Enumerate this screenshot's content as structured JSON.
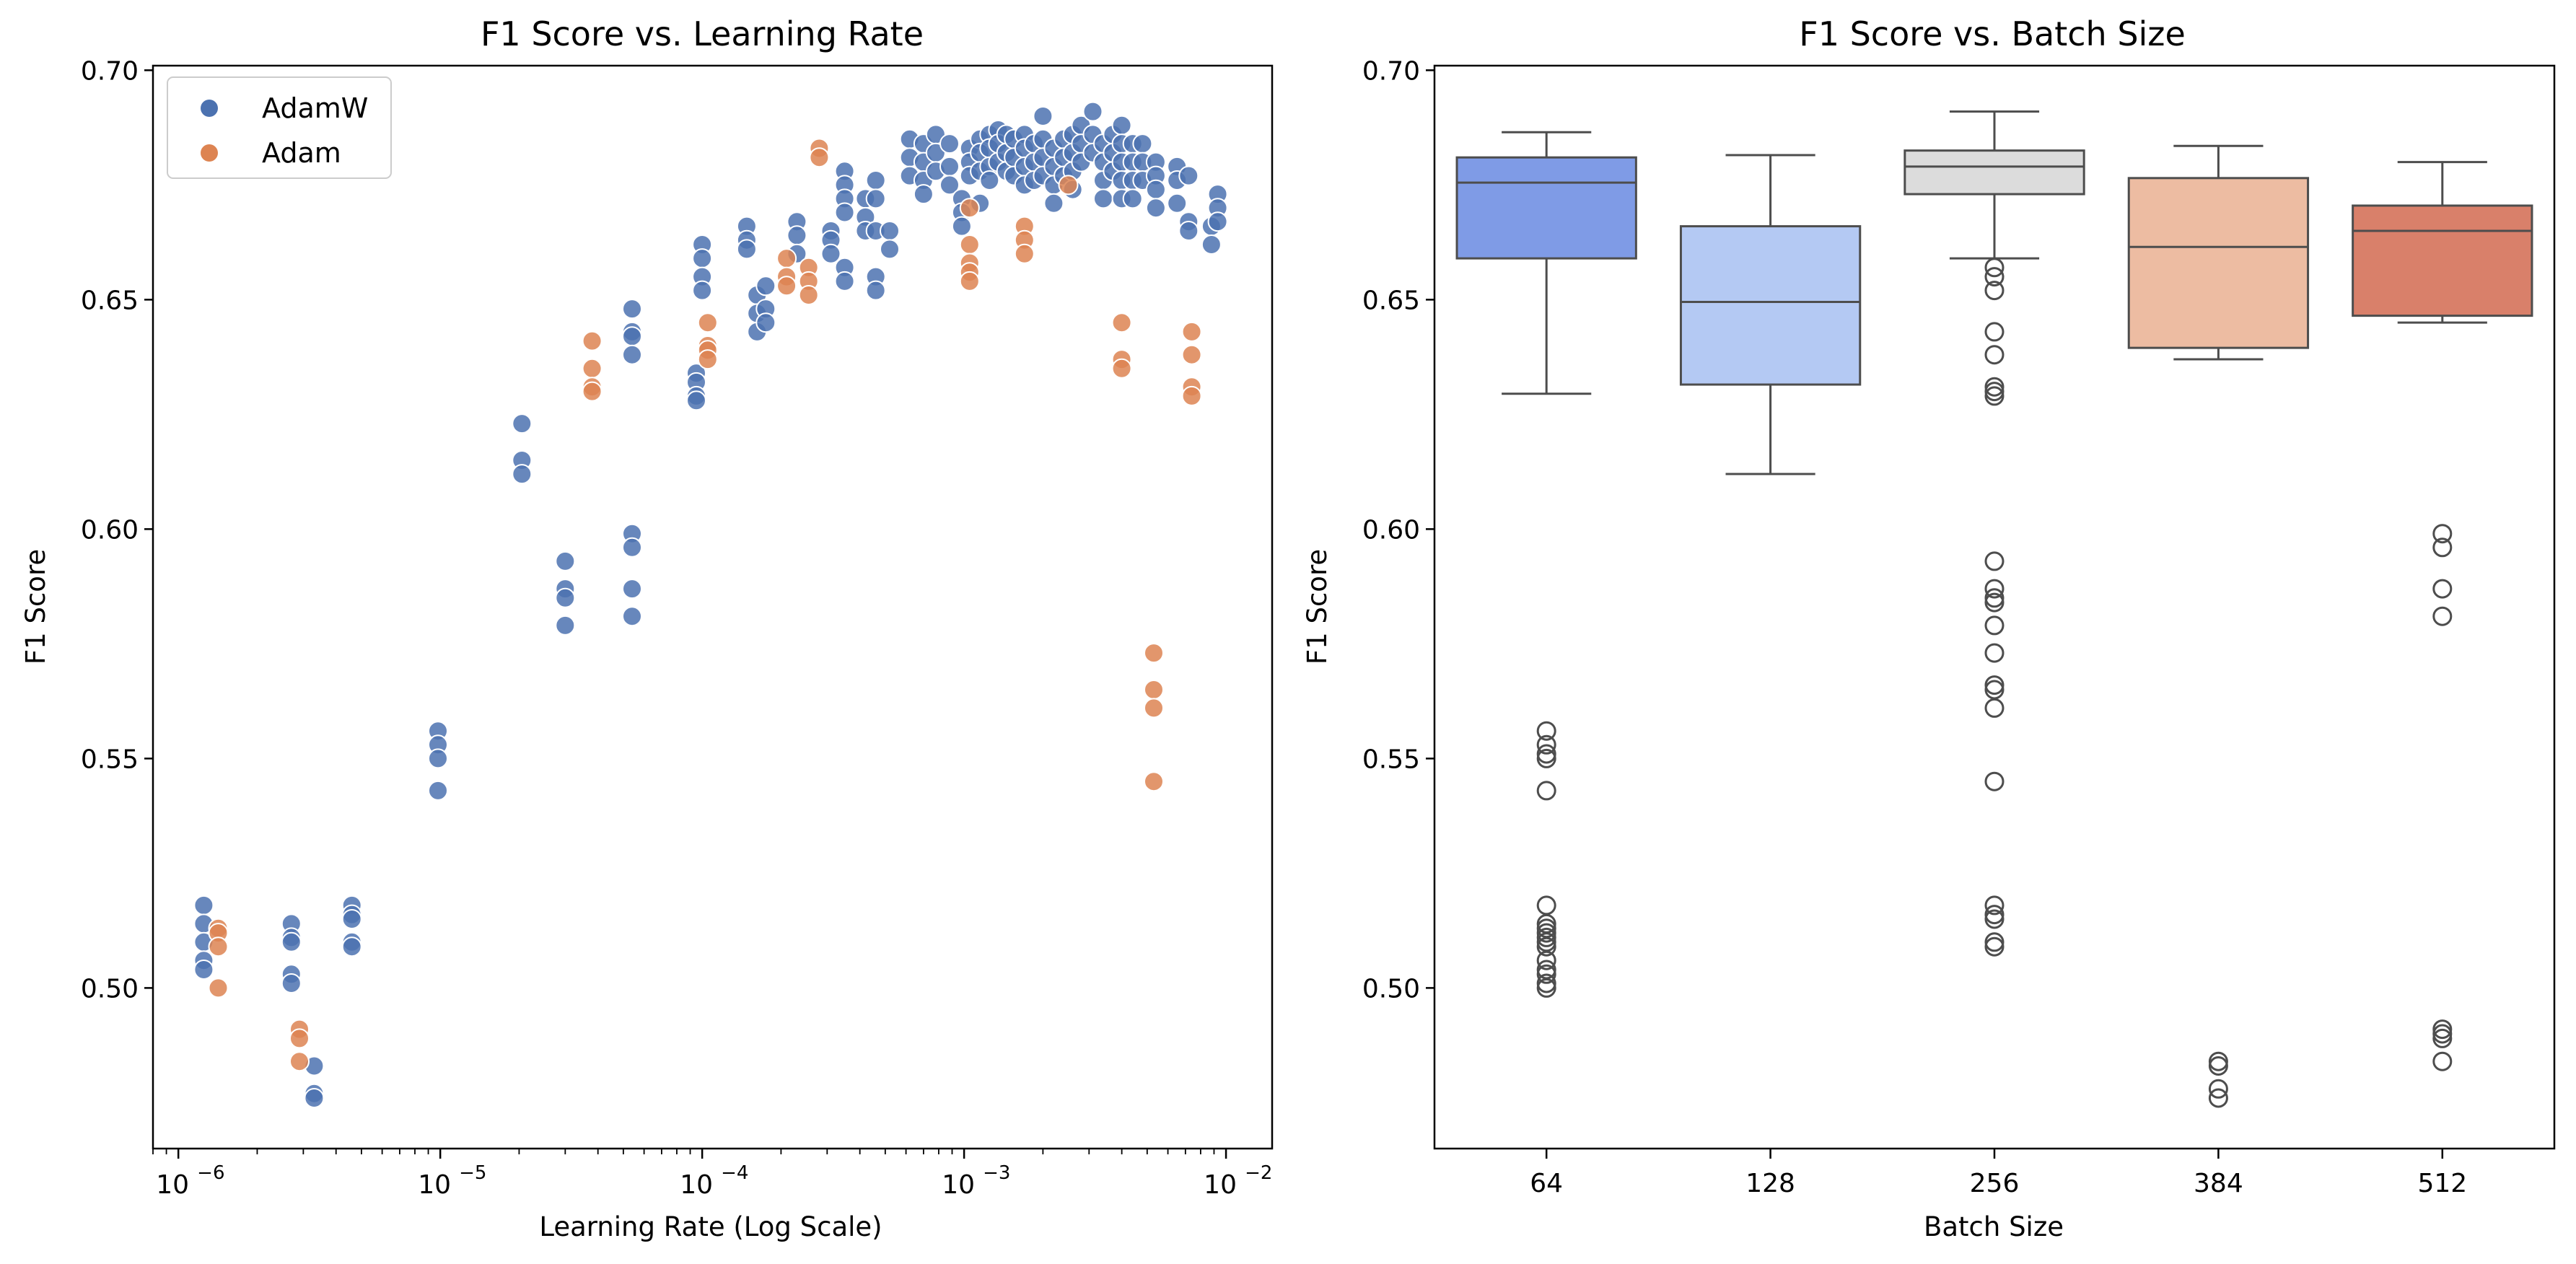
{
  "colors": {
    "adamw": "#4c72b0",
    "adam": "#dd8452",
    "box_fills": [
      "#7f9be6",
      "#b4c9f3",
      "#dcdcdc",
      "#edbca2",
      "#d9806a"
    ],
    "box_line": "#4d4d4d"
  },
  "chart_data": [
    {
      "type": "scatter",
      "title": "F1 Score vs. Learning Rate",
      "xlabel": "Learning Rate (Log Scale)",
      "ylabel": "F1 Score",
      "xscale": "log",
      "xlim": [
        8e-07,
        0.015
      ],
      "ylim": [
        0.465,
        0.701
      ],
      "xticks": [
        {
          "value": 1e-06,
          "base": "10",
          "exp": "−6"
        },
        {
          "value": 1e-05,
          "base": "10",
          "exp": "−5"
        },
        {
          "value": 0.0001,
          "base": "10",
          "exp": "−4"
        },
        {
          "value": 0.001,
          "base": "10",
          "exp": "−3"
        },
        {
          "value": 0.01,
          "base": "10",
          "exp": "−2"
        }
      ],
      "yticks": [
        "0.50",
        "0.55",
        "0.60",
        "0.65",
        "0.70"
      ],
      "legend": {
        "position": "top-left",
        "entries": [
          "AdamW",
          "Adam"
        ]
      },
      "grid": false,
      "series": [
        {
          "name": "AdamW",
          "points": [
            [
              1.25e-06,
              0.518
            ],
            [
              1.25e-06,
              0.514
            ],
            [
              1.25e-06,
              0.51
            ],
            [
              1.25e-06,
              0.506
            ],
            [
              1.25e-06,
              0.504
            ],
            [
              2.7e-06,
              0.514
            ],
            [
              2.7e-06,
              0.511
            ],
            [
              2.7e-06,
              0.51
            ],
            [
              2.7e-06,
              0.503
            ],
            [
              2.7e-06,
              0.501
            ],
            [
              3.3e-06,
              0.483
            ],
            [
              3.3e-06,
              0.477
            ],
            [
              3.3e-06,
              0.476
            ],
            [
              4.6e-06,
              0.518
            ],
            [
              4.6e-06,
              0.516
            ],
            [
              4.6e-06,
              0.515
            ],
            [
              4.6e-06,
              0.51
            ],
            [
              4.6e-06,
              0.509
            ],
            [
              9.8e-06,
              0.556
            ],
            [
              9.8e-06,
              0.553
            ],
            [
              9.8e-06,
              0.55
            ],
            [
              9.8e-06,
              0.543
            ],
            [
              2.05e-05,
              0.623
            ],
            [
              2.05e-05,
              0.615
            ],
            [
              2.05e-05,
              0.612
            ],
            [
              3e-05,
              0.593
            ],
            [
              3e-05,
              0.587
            ],
            [
              3e-05,
              0.585
            ],
            [
              3e-05,
              0.579
            ],
            [
              5.4e-05,
              0.648
            ],
            [
              5.4e-05,
              0.643
            ],
            [
              5.4e-05,
              0.642
            ],
            [
              5.4e-05,
              0.638
            ],
            [
              5.4e-05,
              0.599
            ],
            [
              5.4e-05,
              0.596
            ],
            [
              5.4e-05,
              0.587
            ],
            [
              5.4e-05,
              0.581
            ],
            [
              9.5e-05,
              0.634
            ],
            [
              9.5e-05,
              0.632
            ],
            [
              9.5e-05,
              0.629
            ],
            [
              9.5e-05,
              0.628
            ],
            [
              0.0001,
              0.662
            ],
            [
              0.0001,
              0.659
            ],
            [
              0.0001,
              0.655
            ],
            [
              0.0001,
              0.652
            ],
            [
              0.000148,
              0.666
            ],
            [
              0.000148,
              0.663
            ],
            [
              0.000148,
              0.661
            ],
            [
              0.000162,
              0.651
            ],
            [
              0.000162,
              0.647
            ],
            [
              0.000162,
              0.643
            ],
            [
              0.000175,
              0.653
            ],
            [
              0.000175,
              0.648
            ],
            [
              0.000175,
              0.645
            ],
            [
              0.00023,
              0.667
            ],
            [
              0.00023,
              0.664
            ],
            [
              0.00023,
              0.66
            ],
            [
              0.00031,
              0.665
            ],
            [
              0.00031,
              0.663
            ],
            [
              0.00031,
              0.66
            ],
            [
              0.00035,
              0.678
            ],
            [
              0.00035,
              0.675
            ],
            [
              0.00035,
              0.672
            ],
            [
              0.00035,
              0.669
            ],
            [
              0.00035,
              0.657
            ],
            [
              0.00035,
              0.654
            ],
            [
              0.00042,
              0.672
            ],
            [
              0.00042,
              0.668
            ],
            [
              0.00042,
              0.665
            ],
            [
              0.00046,
              0.676
            ],
            [
              0.00046,
              0.672
            ],
            [
              0.00046,
              0.665
            ],
            [
              0.00046,
              0.655
            ],
            [
              0.00046,
              0.652
            ],
            [
              0.00052,
              0.665
            ],
            [
              0.00052,
              0.661
            ],
            [
              0.00062,
              0.685
            ],
            [
              0.00062,
              0.681
            ],
            [
              0.00062,
              0.677
            ],
            [
              0.0007,
              0.684
            ],
            [
              0.0007,
              0.68
            ],
            [
              0.0007,
              0.676
            ],
            [
              0.0007,
              0.673
            ],
            [
              0.00078,
              0.686
            ],
            [
              0.00078,
              0.682
            ],
            [
              0.00078,
              0.678
            ],
            [
              0.00088,
              0.684
            ],
            [
              0.00088,
              0.679
            ],
            [
              0.00088,
              0.675
            ],
            [
              0.00098,
              0.672
            ],
            [
              0.00098,
              0.669
            ],
            [
              0.00098,
              0.666
            ],
            [
              0.00105,
              0.683
            ],
            [
              0.00105,
              0.68
            ],
            [
              0.00105,
              0.677
            ],
            [
              0.00115,
              0.685
            ],
            [
              0.00115,
              0.682
            ],
            [
              0.00115,
              0.678
            ],
            [
              0.00115,
              0.671
            ],
            [
              0.00125,
              0.686
            ],
            [
              0.00125,
              0.683
            ],
            [
              0.00125,
              0.679
            ],
            [
              0.00125,
              0.676
            ],
            [
              0.00135,
              0.687
            ],
            [
              0.00135,
              0.684
            ],
            [
              0.00135,
              0.68
            ],
            [
              0.00145,
              0.686
            ],
            [
              0.00145,
              0.682
            ],
            [
              0.00145,
              0.678
            ],
            [
              0.00155,
              0.685
            ],
            [
              0.00155,
              0.681
            ],
            [
              0.00155,
              0.677
            ],
            [
              0.0017,
              0.686
            ],
            [
              0.0017,
              0.683
            ],
            [
              0.0017,
              0.679
            ],
            [
              0.0017,
              0.675
            ],
            [
              0.00185,
              0.684
            ],
            [
              0.00185,
              0.68
            ],
            [
              0.00185,
              0.676
            ],
            [
              0.002,
              0.69
            ],
            [
              0.002,
              0.685
            ],
            [
              0.002,
              0.681
            ],
            [
              0.002,
              0.677
            ],
            [
              0.0022,
              0.683
            ],
            [
              0.0022,
              0.679
            ],
            [
              0.0022,
              0.675
            ],
            [
              0.0022,
              0.671
            ],
            [
              0.0024,
              0.685
            ],
            [
              0.0024,
              0.681
            ],
            [
              0.0024,
              0.677
            ],
            [
              0.0026,
              0.686
            ],
            [
              0.0026,
              0.682
            ],
            [
              0.0026,
              0.678
            ],
            [
              0.0026,
              0.674
            ],
            [
              0.0028,
              0.688
            ],
            [
              0.0028,
              0.684
            ],
            [
              0.0028,
              0.68
            ],
            [
              0.0031,
              0.691
            ],
            [
              0.0031,
              0.686
            ],
            [
              0.0031,
              0.682
            ],
            [
              0.0034,
              0.684
            ],
            [
              0.0034,
              0.68
            ],
            [
              0.0034,
              0.676
            ],
            [
              0.0034,
              0.672
            ],
            [
              0.0037,
              0.686
            ],
            [
              0.0037,
              0.682
            ],
            [
              0.0037,
              0.678
            ],
            [
              0.004,
              0.688
            ],
            [
              0.004,
              0.684
            ],
            [
              0.004,
              0.68
            ],
            [
              0.004,
              0.676
            ],
            [
              0.004,
              0.672
            ],
            [
              0.0044,
              0.684
            ],
            [
              0.0044,
              0.68
            ],
            [
              0.0044,
              0.676
            ],
            [
              0.0044,
              0.672
            ],
            [
              0.0048,
              0.684
            ],
            [
              0.0048,
              0.68
            ],
            [
              0.0048,
              0.676
            ],
            [
              0.0054,
              0.68
            ],
            [
              0.0054,
              0.677
            ],
            [
              0.0054,
              0.674
            ],
            [
              0.0054,
              0.67
            ],
            [
              0.0065,
              0.679
            ],
            [
              0.0065,
              0.676
            ],
            [
              0.0065,
              0.671
            ],
            [
              0.0072,
              0.677
            ],
            [
              0.0072,
              0.667
            ],
            [
              0.0072,
              0.665
            ],
            [
              0.0088,
              0.666
            ],
            [
              0.0088,
              0.662
            ],
            [
              0.0093,
              0.673
            ],
            [
              0.0093,
              0.67
            ],
            [
              0.0093,
              0.667
            ]
          ]
        },
        {
          "name": "Adam",
          "points": [
            [
              1.42e-06,
              0.513
            ],
            [
              1.42e-06,
              0.512
            ],
            [
              1.42e-06,
              0.509
            ],
            [
              1.42e-06,
              0.5
            ],
            [
              2.9e-06,
              0.491
            ],
            [
              2.9e-06,
              0.489
            ],
            [
              2.9e-06,
              0.484
            ],
            [
              3.8e-05,
              0.641
            ],
            [
              3.8e-05,
              0.635
            ],
            [
              3.8e-05,
              0.631
            ],
            [
              3.8e-05,
              0.63
            ],
            [
              0.000105,
              0.645
            ],
            [
              0.000105,
              0.64
            ],
            [
              0.000105,
              0.639
            ],
            [
              0.000105,
              0.637
            ],
            [
              0.00021,
              0.659
            ],
            [
              0.00021,
              0.655
            ],
            [
              0.00021,
              0.653
            ],
            [
              0.000255,
              0.657
            ],
            [
              0.000255,
              0.654
            ],
            [
              0.000255,
              0.651
            ],
            [
              0.00028,
              0.683
            ],
            [
              0.00028,
              0.681
            ],
            [
              0.00105,
              0.67
            ],
            [
              0.00105,
              0.662
            ],
            [
              0.00105,
              0.658
            ],
            [
              0.00105,
              0.656
            ],
            [
              0.00105,
              0.654
            ],
            [
              0.0017,
              0.666
            ],
            [
              0.0017,
              0.663
            ],
            [
              0.0017,
              0.66
            ],
            [
              0.0025,
              0.675
            ],
            [
              0.004,
              0.645
            ],
            [
              0.004,
              0.637
            ],
            [
              0.004,
              0.635
            ],
            [
              0.0053,
              0.573
            ],
            [
              0.0053,
              0.565
            ],
            [
              0.0053,
              0.561
            ],
            [
              0.0053,
              0.545
            ],
            [
              0.0074,
              0.643
            ],
            [
              0.0074,
              0.638
            ],
            [
              0.0074,
              0.631
            ],
            [
              0.0074,
              0.629
            ]
          ]
        }
      ]
    },
    {
      "type": "box",
      "title": "F1 Score vs. Batch Size",
      "xlabel": "Batch Size",
      "ylabel": "F1 Score",
      "ylim": [
        0.465,
        0.701
      ],
      "yticks": [
        "0.50",
        "0.55",
        "0.60",
        "0.65",
        "0.70"
      ],
      "grid": false,
      "categories": [
        "64",
        "128",
        "256",
        "384",
        "512"
      ],
      "boxes": [
        {
          "whisker_low": 0.6295,
          "q1": 0.659,
          "median": 0.6755,
          "q3": 0.681,
          "whisker_high": 0.6865,
          "outliers": [
            0.556,
            0.553,
            0.551,
            0.55,
            0.543,
            0.518,
            0.514,
            0.513,
            0.512,
            0.511,
            0.51,
            0.509,
            0.506,
            0.504,
            0.503,
            0.501,
            0.5
          ]
        },
        {
          "whisker_low": 0.612,
          "q1": 0.6315,
          "median": 0.6495,
          "q3": 0.666,
          "whisker_high": 0.6815,
          "outliers": []
        },
        {
          "whisker_low": 0.659,
          "q1": 0.673,
          "median": 0.679,
          "q3": 0.6825,
          "whisker_high": 0.691,
          "outliers": [
            0.657,
            0.655,
            0.652,
            0.643,
            0.638,
            0.631,
            0.63,
            0.629,
            0.593,
            0.587,
            0.585,
            0.584,
            0.579,
            0.573,
            0.566,
            0.565,
            0.561,
            0.545,
            0.518,
            0.516,
            0.515,
            0.51,
            0.509
          ]
        },
        {
          "whisker_low": 0.637,
          "q1": 0.6395,
          "median": 0.6615,
          "q3": 0.6765,
          "whisker_high": 0.6835,
          "outliers": [
            0.484,
            0.483,
            0.478,
            0.476
          ]
        },
        {
          "whisker_low": 0.645,
          "q1": 0.6465,
          "median": 0.665,
          "q3": 0.6705,
          "whisker_high": 0.68,
          "outliers": [
            0.599,
            0.596,
            0.587,
            0.581,
            0.491,
            0.49,
            0.489,
            0.484
          ]
        }
      ]
    }
  ]
}
